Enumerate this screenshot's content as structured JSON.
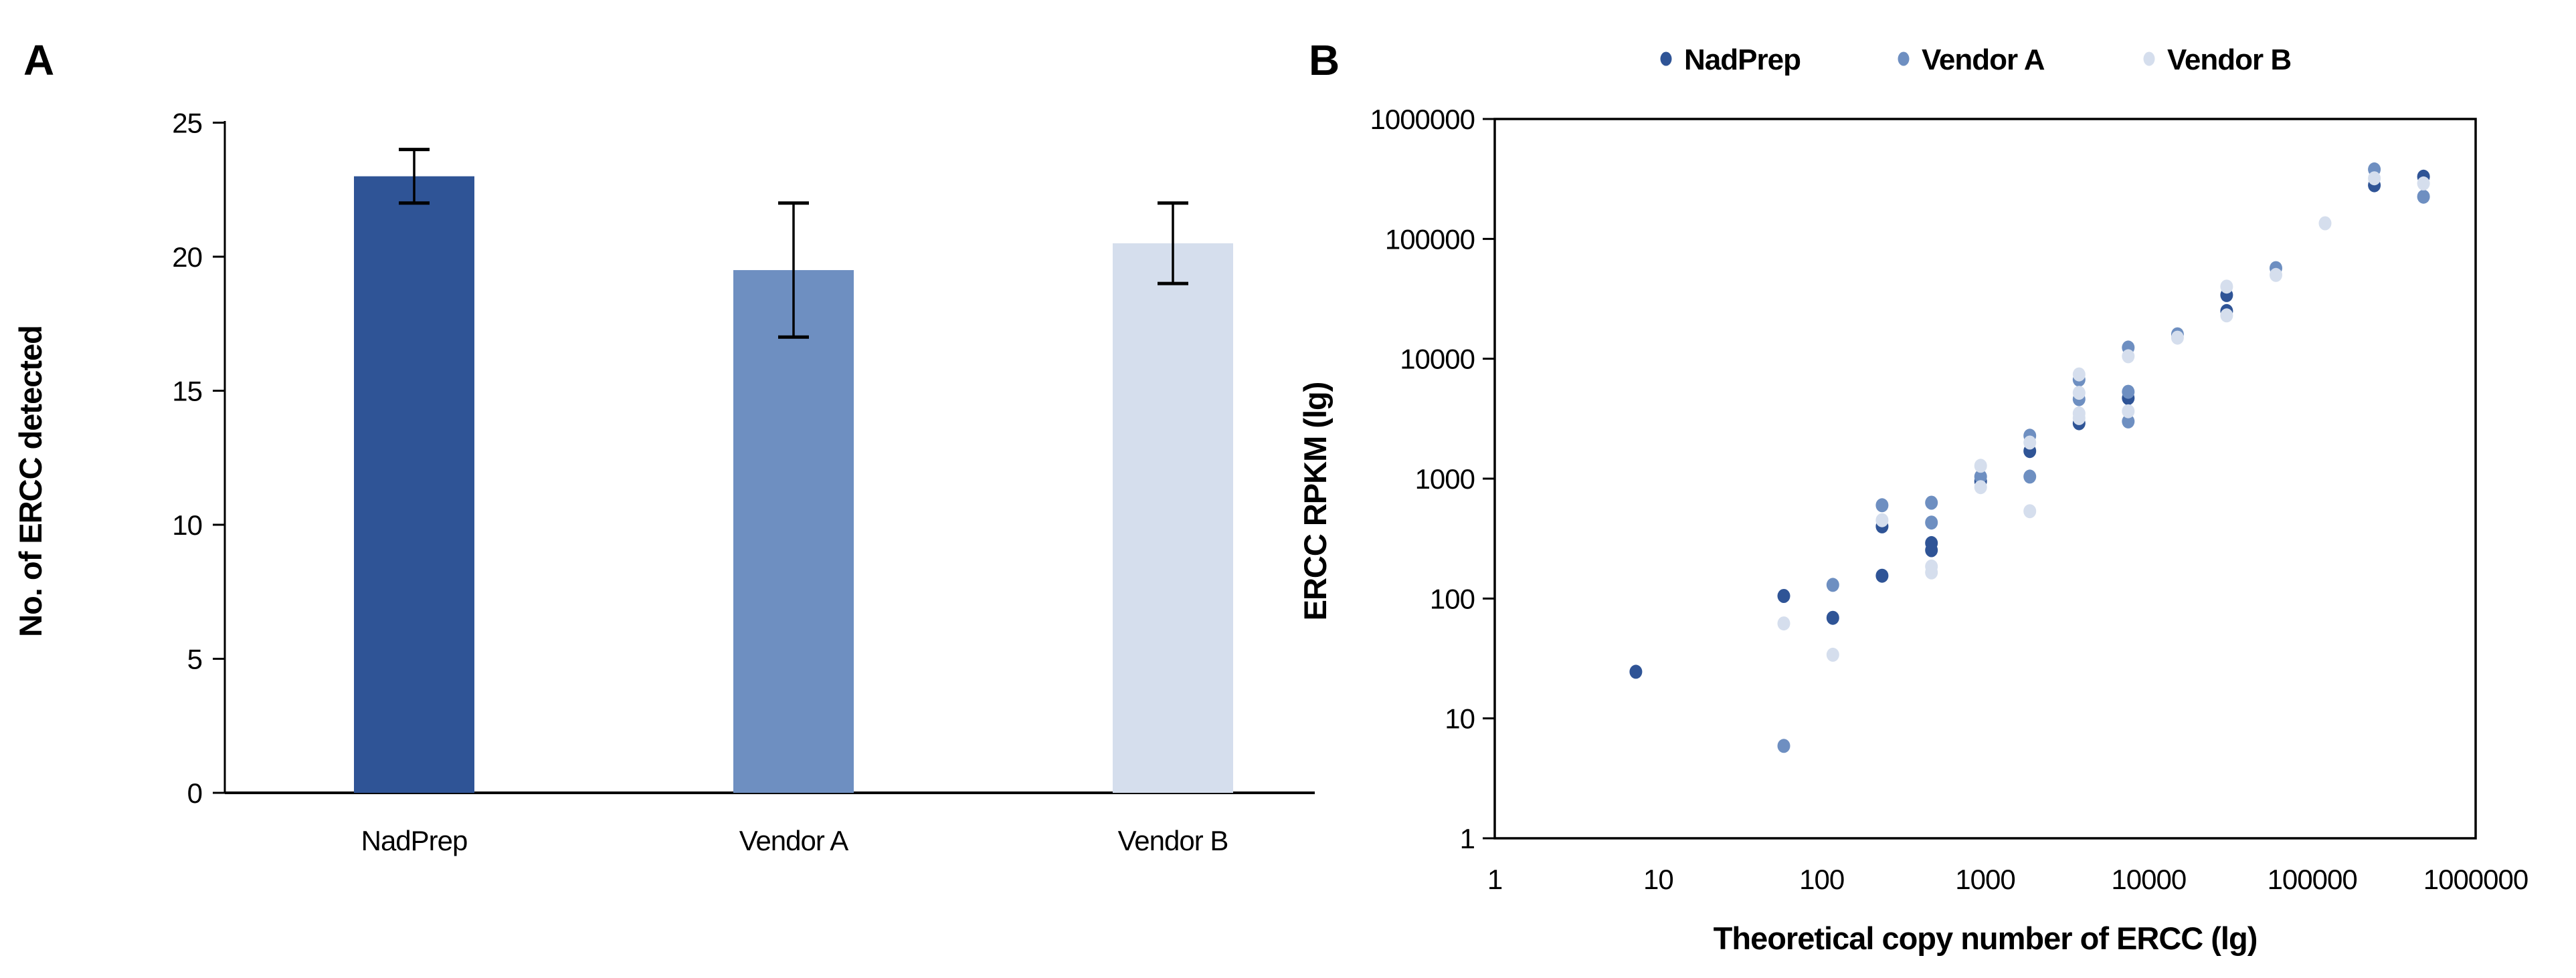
{
  "figure": {
    "panel_a_letter": "A",
    "panel_b_letter": "B"
  },
  "chart_data": [
    {
      "type": "bar",
      "panel": "A",
      "ylabel": "No. of ERCC detected",
      "xlabel": "",
      "categories": [
        "NadPrep",
        "Vendor A",
        "Vendor B"
      ],
      "values": [
        23,
        19.5,
        20.5
      ],
      "error_low": [
        22,
        17,
        19
      ],
      "error_high": [
        24,
        22,
        22
      ],
      "bar_colors": [
        "#2F5496",
        "#6E8FC1",
        "#D5DEED"
      ],
      "ylim": [
        0,
        25
      ],
      "yticks": [
        0,
        5,
        10,
        15,
        20,
        25
      ],
      "grid": false,
      "legend_position": "none"
    },
    {
      "type": "scatter",
      "panel": "B",
      "xlabel": "Theoretical copy number of ERCC (lg)",
      "ylabel": "ERCC RPKM (lg)",
      "xscale": "log",
      "yscale": "log",
      "xlim": [
        1,
        1000000
      ],
      "ylim": [
        1,
        1000000
      ],
      "xticks": [
        1,
        10,
        100,
        1000,
        10000,
        100000,
        1000000
      ],
      "yticks": [
        1,
        10,
        100,
        1000,
        10000,
        100000,
        1000000
      ],
      "grid": false,
      "legend_position": "top",
      "series": [
        {
          "name": "NadPrep",
          "color": "#2F5496",
          "points": [
            [
              7.3,
              24.5
            ],
            [
              58.6,
              105
            ],
            [
              117,
              69
            ],
            [
              234,
              400
            ],
            [
              234,
              155
            ],
            [
              469,
              290
            ],
            [
              469,
              253
            ],
            [
              938,
              950
            ],
            [
              1875,
              1700
            ],
            [
              3750,
              2900
            ],
            [
              7500,
              4700
            ],
            [
              30000,
              34000
            ],
            [
              30000,
              25000
            ],
            [
              240000,
              280000
            ],
            [
              480000,
              330000
            ]
          ]
        },
        {
          "name": "Vendor A",
          "color": "#6E8FC1",
          "points": [
            [
              58.6,
              5.9
            ],
            [
              117,
              130
            ],
            [
              234,
              600
            ],
            [
              469,
              630
            ],
            [
              469,
              430
            ],
            [
              938,
              1040
            ],
            [
              1875,
              2280
            ],
            [
              1875,
              1040
            ],
            [
              3750,
              6700
            ],
            [
              3750,
              4600
            ],
            [
              7500,
              12400
            ],
            [
              7500,
              5300
            ],
            [
              7500,
              3000
            ],
            [
              15000,
              16000
            ],
            [
              60000,
              57000
            ],
            [
              240000,
              380000
            ],
            [
              480000,
              225000
            ]
          ]
        },
        {
          "name": "Vendor B",
          "color": "#D5DEED",
          "points": [
            [
              58.6,
              62
            ],
            [
              117,
              34
            ],
            [
              234,
              450
            ],
            [
              469,
              185
            ],
            [
              469,
              165
            ],
            [
              938,
              1280
            ],
            [
              938,
              850
            ],
            [
              1875,
              2000
            ],
            [
              1875,
              535
            ],
            [
              3750,
              7400
            ],
            [
              3750,
              5200
            ],
            [
              3750,
              3500
            ],
            [
              3750,
              3200
            ],
            [
              7500,
              10500
            ],
            [
              7500,
              3650
            ],
            [
              15000,
              15000
            ],
            [
              30000,
              40000
            ],
            [
              30000,
              23000
            ],
            [
              60000,
              50000
            ],
            [
              120000,
              135000
            ],
            [
              240000,
              320000
            ],
            [
              480000,
              290000
            ]
          ]
        }
      ]
    }
  ]
}
